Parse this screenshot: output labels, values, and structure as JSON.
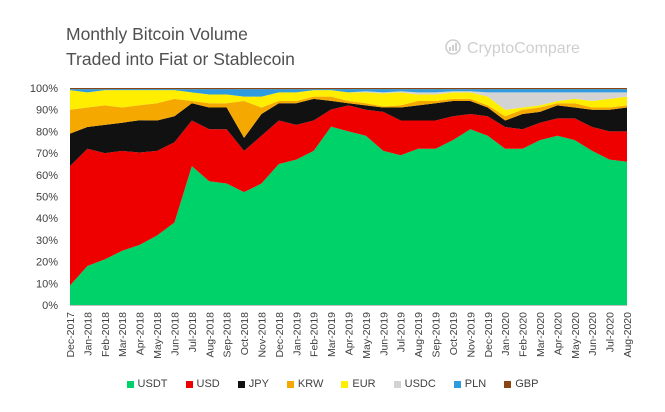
{
  "title_line1": "Monthly Bitcoin Volume",
  "title_line2": "Traded into Fiat or Stablecoin",
  "brand": "CryptoCompare",
  "chart_data": {
    "type": "area",
    "stacked": true,
    "percent": true,
    "title": "Monthly Bitcoin Volume Traded into Fiat or Stablecoin",
    "ylim": [
      0,
      100
    ],
    "yticks": [
      "0%",
      "10%",
      "20%",
      "30%",
      "40%",
      "50%",
      "60%",
      "70%",
      "80%",
      "90%",
      "100%"
    ],
    "grid": false,
    "legend_position": "bottom",
    "categories": [
      "Dec-2017",
      "Jan-2018",
      "Feb-2018",
      "Mar-2018",
      "Apr-2018",
      "May-2018",
      "Jun-2018",
      "Jul-2018",
      "Aug-2018",
      "Sep-2018",
      "Oct-2018",
      "Nov-2018",
      "Dec-2018",
      "Jan-2019",
      "Feb-2019",
      "Mar-2019",
      "Apr-2019",
      "May-2019",
      "Jun-2019",
      "Jul-2019",
      "Aug-2019",
      "Sep-2019",
      "Oct-2019",
      "Nov-2019",
      "Dec-2019",
      "Jan-2020",
      "Feb-2020",
      "Mar-2020",
      "Apr-2020",
      "May-2020",
      "Jun-2020",
      "Jul-2020",
      "Aug-2020"
    ],
    "series": [
      {
        "name": "USDT",
        "color": "#00d26a",
        "values": [
          9,
          18,
          21,
          25,
          28,
          32,
          38,
          64,
          57,
          56,
          52,
          56,
          65,
          67,
          71,
          83,
          80,
          78,
          71,
          69,
          72,
          72,
          76,
          81,
          78,
          72,
          72,
          76,
          78,
          76,
          71,
          67,
          66
        ]
      },
      {
        "name": "USD",
        "color": "#ee0000",
        "values": [
          55,
          54,
          49,
          46,
          43,
          39,
          37,
          21,
          24,
          25,
          19,
          22,
          20,
          16,
          14,
          8,
          12,
          12,
          18,
          16,
          13,
          13,
          11,
          7,
          9,
          10,
          9,
          8,
          8,
          10,
          11,
          13,
          14
        ]
      },
      {
        "name": "JPY",
        "color": "#111111",
        "values": [
          15,
          10,
          13,
          13,
          15,
          14,
          12,
          8,
          10,
          10,
          6,
          10,
          8,
          10,
          10,
          4,
          1,
          2,
          2,
          6,
          7,
          8,
          7,
          6,
          4,
          3,
          7,
          5,
          6,
          5,
          8,
          10,
          11
        ]
      },
      {
        "name": "KRW",
        "color": "#f5a800",
        "values": [
          11,
          9,
          9,
          7,
          7,
          8,
          8,
          1,
          2,
          2,
          17,
          3,
          1,
          1,
          1,
          2,
          1,
          1,
          0.5,
          1,
          2,
          1,
          1,
          1,
          1,
          2,
          2,
          2,
          1,
          2,
          1,
          1,
          1
        ]
      },
      {
        "name": "EUR",
        "color": "#ffee00",
        "values": [
          9,
          7,
          7,
          8,
          7,
          6,
          4,
          4,
          4,
          4,
          2,
          5,
          4,
          4,
          3,
          3,
          4,
          5,
          6,
          6,
          3,
          3,
          3,
          3,
          4,
          3,
          1,
          1,
          1,
          2,
          3,
          4,
          4
        ]
      },
      {
        "name": "USDC",
        "color": "#d3d3d3",
        "values": [
          0,
          0,
          0,
          0,
          0,
          0,
          0,
          0,
          0,
          0,
          0,
          0,
          0,
          0,
          0,
          0,
          0,
          0.5,
          0.5,
          0.5,
          1,
          1,
          0.5,
          0.5,
          2,
          8,
          7,
          6,
          4,
          3,
          4,
          3,
          2
        ]
      },
      {
        "name": "PLN",
        "color": "#2e9be0",
        "values": [
          0.5,
          1.5,
          0.5,
          0.5,
          0.5,
          0.5,
          0.5,
          1.5,
          2.5,
          2.5,
          3.5,
          3.5,
          1.5,
          1.5,
          0.5,
          0.5,
          1.5,
          1,
          1.5,
          1,
          1.5,
          1.5,
          1,
          1,
          1.5,
          1.5,
          1.5,
          1.5,
          1.5,
          1.5,
          1.5,
          1.5,
          1.5
        ]
      },
      {
        "name": "GBP",
        "color": "#8b4513",
        "values": [
          0.5,
          0.5,
          0.5,
          0.5,
          0.5,
          0.5,
          0.5,
          0.5,
          0.5,
          0.5,
          0.5,
          0.5,
          0.5,
          0.5,
          0.5,
          0.5,
          0.5,
          0.5,
          0.5,
          0.5,
          0.5,
          0.5,
          0.5,
          0.5,
          0.5,
          0.5,
          0.5,
          0.5,
          0.5,
          0.5,
          0.5,
          0.5,
          0.5
        ]
      }
    ]
  }
}
